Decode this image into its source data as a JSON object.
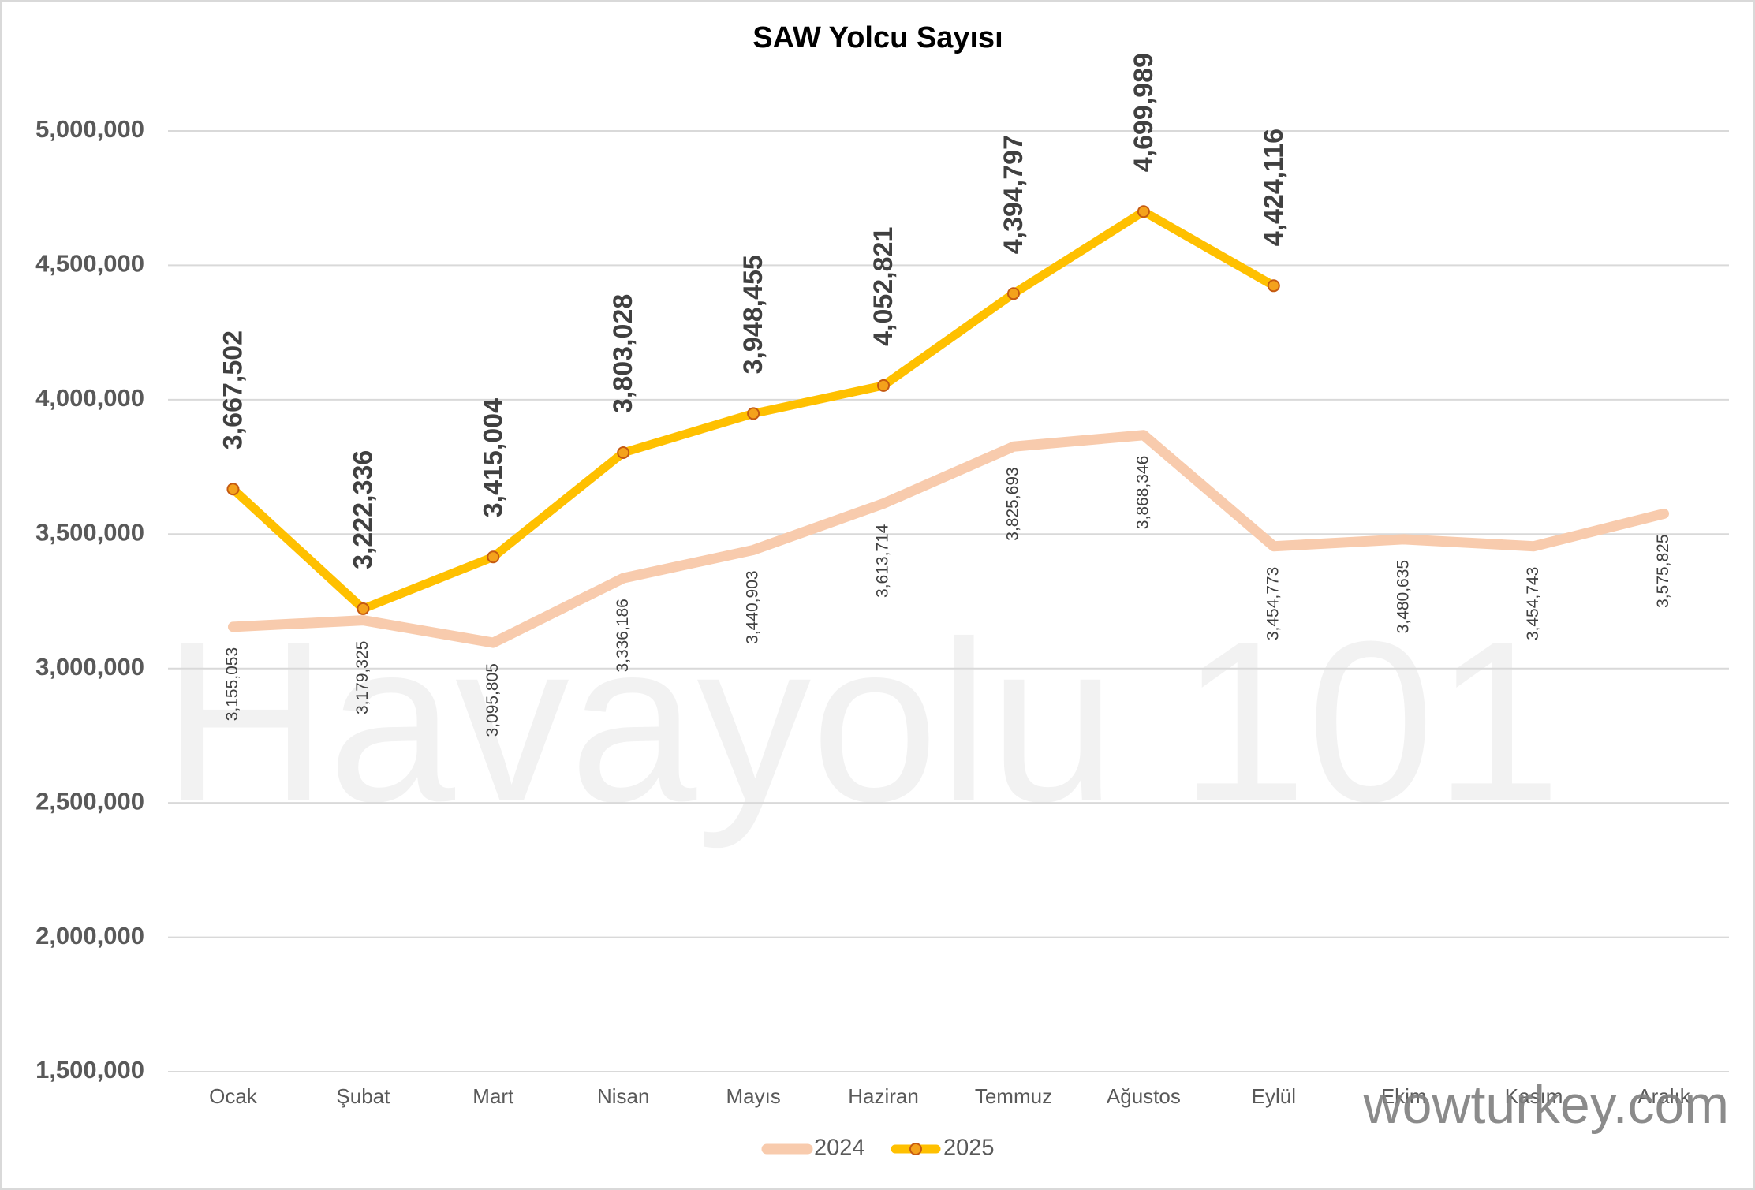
{
  "chart_data": {
    "type": "line",
    "title": "SAW Yolcu Sayısı",
    "categories": [
      "Ocak",
      "Şubat",
      "Mart",
      "Nisan",
      "Mayıs",
      "Haziran",
      "Temmuz",
      "Ağustos",
      "Eylül",
      "Ekim",
      "Kasım",
      "Aralık"
    ],
    "series": [
      {
        "name": "2024",
        "color": "#f8cbad",
        "values": [
          3155053,
          3179325,
          3095805,
          3336186,
          3440903,
          3613714,
          3825693,
          3868346,
          3454773,
          3480635,
          3454743,
          3575825
        ],
        "value_labels": [
          "3,155,053",
          "3,179,325",
          "3,095,805",
          "3,336,186",
          "3,440,903",
          "3,613,714",
          "3,825,693",
          "3,868,346",
          "3,454,773",
          "3,480,635",
          "3,454,743",
          "3,575,825"
        ]
      },
      {
        "name": "2025",
        "color": "#ffc000",
        "values": [
          3667502,
          3222336,
          3415004,
          3803028,
          3948455,
          4052821,
          4394797,
          4699989,
          4424116,
          null,
          null,
          null
        ],
        "value_labels": [
          "3,667,502",
          "3,222,336",
          "3,415,004",
          "3,803,028",
          "3,948,455",
          "4,052,821",
          "4,394,797",
          "4,699,989",
          "4,424,116",
          null,
          null,
          null
        ]
      }
    ],
    "ylim": [
      1500000,
      5000000
    ],
    "yticks": [
      {
        "value": 1500000,
        "label": "1,500,000"
      },
      {
        "value": 2000000,
        "label": "2,000,000"
      },
      {
        "value": 2500000,
        "label": "2,500,000"
      },
      {
        "value": 3000000,
        "label": "3,000,000"
      },
      {
        "value": 3500000,
        "label": "3,500,000"
      },
      {
        "value": 4000000,
        "label": "4,000,000"
      },
      {
        "value": 4500000,
        "label": "4,500,000"
      },
      {
        "value": 5000000,
        "label": "5,000,000"
      }
    ],
    "grid": true,
    "legend": "bottom",
    "watermarks": [
      "Havayolu 101",
      "wowturkey.com"
    ]
  }
}
